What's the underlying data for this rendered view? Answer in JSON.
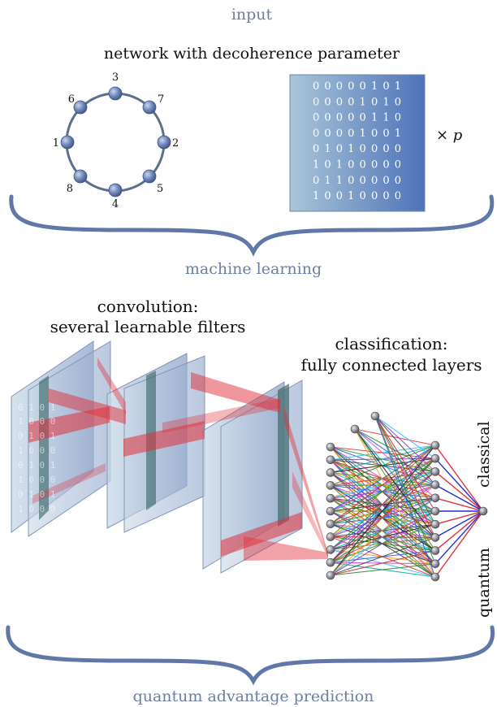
{
  "labels": {
    "input": "input",
    "network_title": "network with decoherence parameter",
    "times_p": "× p",
    "machine_learning": "machine learning",
    "convolution_line1": "convolution:",
    "convolution_line2": "several learnable filters",
    "classification_line1": "classification:",
    "classification_line2": "fully connected layers",
    "output_classical": "classical",
    "output_quantum": "quantum",
    "prediction": "quantum advantage prediction"
  },
  "graph": {
    "node_labels": [
      "3",
      "7",
      "2",
      "5",
      "4",
      "8",
      "1",
      "6"
    ]
  },
  "matrix": {
    "rows": [
      "0 0 0 0 0 1 0 1",
      "0 0 0 0 1 0 1 0",
      "0 0 0 0 0 1 1 0",
      "0 0 0 0 1 0 0 1",
      "0 1 0 1 0 0 0 0",
      "1 0 1 0 0 0 0 0",
      "0 1 1 0 0 0 0 0",
      "1 0 0 1 0 0 0 0"
    ]
  },
  "colors": {
    "section_text": "#6b7fa3",
    "brace": "#5f78a8",
    "node_fill": "#6f86b8",
    "ring": "#5d6f8f",
    "matrix_light": "#a9c6d8",
    "matrix_dark": "#4e72b8",
    "filter_red": "#e0303a"
  }
}
